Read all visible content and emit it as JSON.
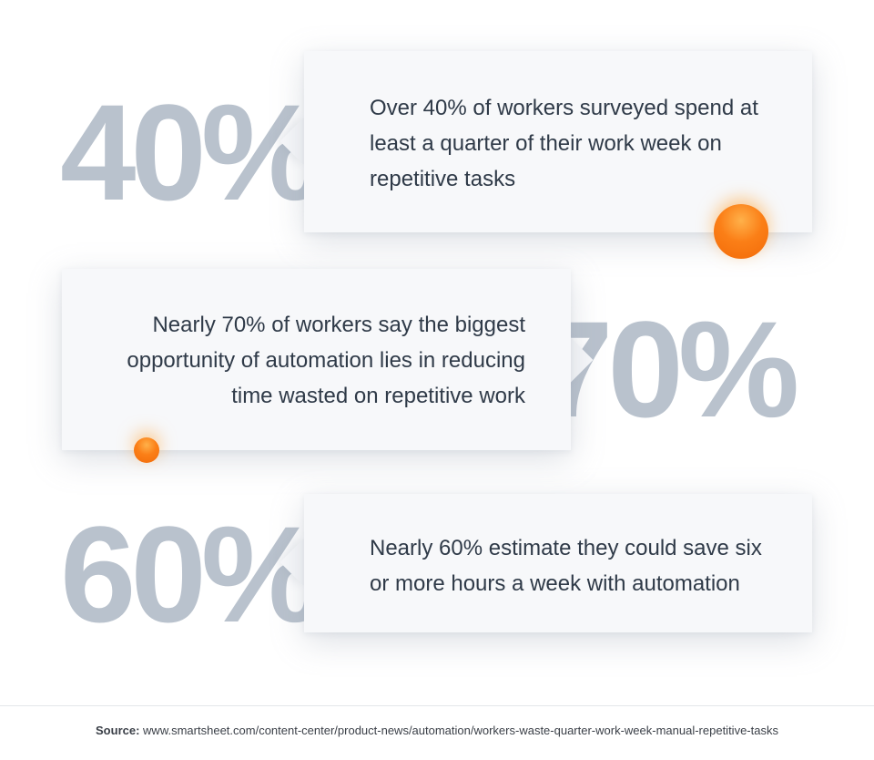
{
  "stats": [
    {
      "number": "40%",
      "text": "Over 40% of workers surveyed spend at least a quarter of their work week on repetitive tasks"
    },
    {
      "number": "70%",
      "text": "Nearly 70% of workers say the biggest opportunity of automation lies in reducing time wasted on repetitive work"
    },
    {
      "number": "60%",
      "text": "Nearly 60% estimate they could save six or more hours a week with automation"
    }
  ],
  "footer": {
    "source_label": "Source:",
    "source_url": "www.smartsheet.com/content-center/product-news/automation/workers-waste-quarter-work-week-manual-repetitive-tasks"
  },
  "colors": {
    "stat_number": "#b9c2cd",
    "card_bg": "#f7f8fa",
    "text": "#2f3a48",
    "accent_orange": "#f26a08"
  }
}
